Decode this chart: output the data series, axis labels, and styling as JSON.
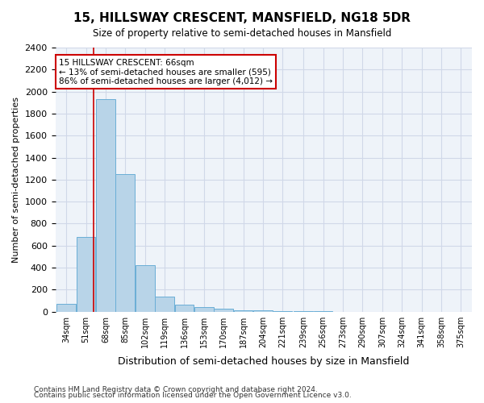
{
  "title": "15, HILLSWAY CRESCENT, MANSFIELD, NG18 5DR",
  "subtitle": "Size of property relative to semi-detached houses in Mansfield",
  "xlabel": "Distribution of semi-detached houses by size in Mansfield",
  "ylabel": "Number of semi-detached properties",
  "footnote1": "Contains HM Land Registry data © Crown copyright and database right 2024.",
  "footnote2": "Contains public sector information licensed under the Open Government Licence v3.0.",
  "annotation_title": "15 HILLSWAY CRESCENT: 66sqm",
  "annotation_line1": "← 13% of semi-detached houses are smaller (595)",
  "annotation_line2": "86% of semi-detached houses are larger (4,012) →",
  "property_size": 66,
  "bin_labels": [
    "34sqm",
    "51sqm",
    "68sqm",
    "85sqm",
    "102sqm",
    "119sqm",
    "136sqm",
    "153sqm",
    "170sqm",
    "187sqm",
    "204sqm",
    "221sqm",
    "239sqm",
    "256sqm",
    "273sqm",
    "290sqm",
    "307sqm",
    "324sqm",
    "341sqm",
    "358sqm",
    "375sqm"
  ],
  "bin_edges": [
    34,
    51,
    68,
    85,
    102,
    119,
    136,
    153,
    170,
    187,
    204,
    221,
    239,
    256,
    273,
    290,
    307,
    324,
    341,
    358,
    375
  ],
  "bar_values": [
    70,
    680,
    1930,
    1250,
    420,
    140,
    65,
    45,
    30,
    15,
    15,
    5,
    3,
    2,
    1,
    1,
    0,
    0,
    0,
    0
  ],
  "bar_color": "#b8d4e8",
  "bar_edge_color": "#6aaed6",
  "grid_color": "#d0d8e8",
  "background_color": "#eef3f9",
  "vline_color": "#cc0000",
  "vline_x": 66,
  "annotation_box_color": "#cc0000",
  "ylim": [
    0,
    2400
  ],
  "yticks": [
    0,
    200,
    400,
    600,
    800,
    1000,
    1200,
    1400,
    1600,
    1800,
    2000,
    2200,
    2400
  ]
}
